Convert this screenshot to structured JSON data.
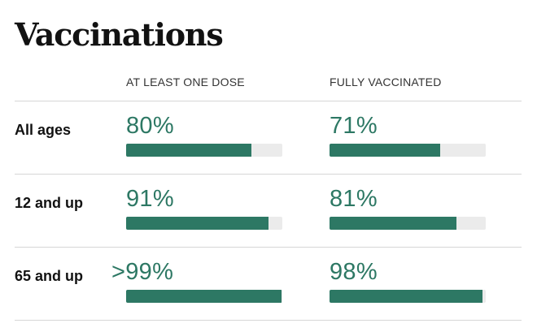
{
  "title": "Vaccinations",
  "colors": {
    "accent": "#2d7864",
    "track": "#ebebeb",
    "divider": "#d6d6d6"
  },
  "chart_data": {
    "type": "bar",
    "title": "Vaccinations",
    "categories": [
      "All ages",
      "12 and up",
      "65 and up"
    ],
    "series": [
      {
        "name": "AT LEAST ONE DOSE",
        "labels": [
          "80%",
          "91%",
          ">99%"
        ],
        "values": [
          80,
          91,
          99.5
        ]
      },
      {
        "name": "FULLY VACCINATED",
        "labels": [
          "71%",
          "81%",
          "98%"
        ],
        "values": [
          71,
          81,
          98
        ]
      }
    ],
    "ylim": [
      0,
      100
    ],
    "grid": false,
    "orientation": "horizontal"
  }
}
